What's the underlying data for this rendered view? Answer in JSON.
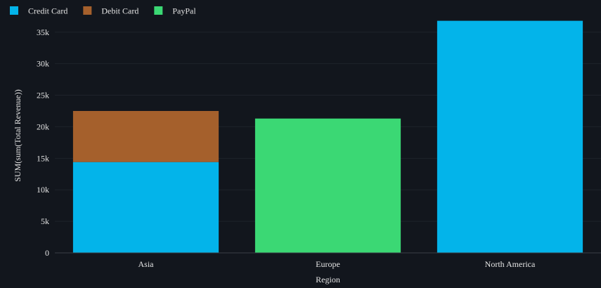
{
  "colors": {
    "background": "#12161d",
    "gridline": "#1e232b",
    "axis_line": "#3a3f47",
    "text": "#e4e4e4"
  },
  "chart_data": {
    "type": "bar",
    "stacked": true,
    "categories": [
      "Asia",
      "Europe",
      "North America"
    ],
    "series": [
      {
        "name": "Credit Card",
        "color": "#03b4ea",
        "values": [
          14400,
          0,
          36800
        ]
      },
      {
        "name": "Debit Card",
        "color": "#a5602c",
        "values": [
          8100,
          0,
          0
        ]
      },
      {
        "name": "PayPal",
        "color": "#3bd874",
        "values": [
          0,
          21300,
          0
        ]
      }
    ],
    "xlabel": "Region",
    "ylabel": "SUM(sum(Total Revenue))",
    "ylim": [
      0,
      37200
    ],
    "yticks": [
      0,
      5000,
      10000,
      15000,
      20000,
      25000,
      30000,
      35000
    ],
    "ytick_labels": [
      "0",
      "5k",
      "10k",
      "15k",
      "20k",
      "25k",
      "30k",
      "35k"
    ],
    "grid": true,
    "legend_position": "top-left"
  }
}
